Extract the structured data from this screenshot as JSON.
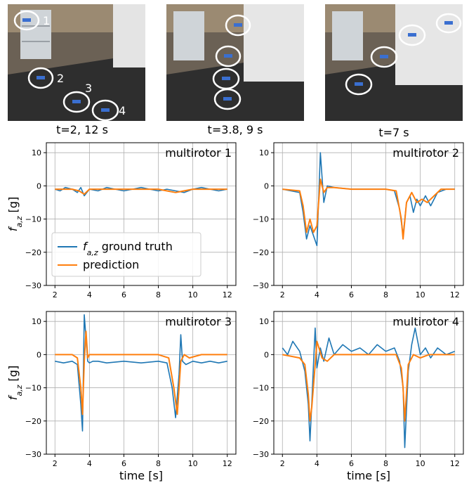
{
  "photos": [
    {
      "caption": "t=2, 12 s",
      "markers": [
        "1",
        "2",
        "3",
        "4"
      ]
    },
    {
      "caption": "t=3.8, 9 s",
      "markers": []
    },
    {
      "caption": "t=7 s",
      "markers": []
    }
  ],
  "colors": {
    "ground_truth": "#1f77b4",
    "prediction": "#ff7f0e",
    "grid": "#b0b0b0",
    "floor": "#3a3a3a",
    "cabinet": "#c9cfd4",
    "curtain": "#e8e8e8",
    "wall": "#8c7a63"
  },
  "chart_data": [
    {
      "type": "line",
      "title": "multirotor 1",
      "xlabel": "",
      "ylabel": "f_{a,z} [g]",
      "xlim": [
        1.5,
        12.5
      ],
      "ylim": [
        -30,
        13
      ],
      "xticks": [
        2,
        4,
        6,
        8,
        10,
        12
      ],
      "yticks": [
        10,
        0,
        -10,
        -20,
        -30
      ],
      "grid": true,
      "legend": {
        "position": "lower-left",
        "entries": [
          "f_{a,z} ground truth",
          "prediction"
        ]
      },
      "series": [
        {
          "name": "f_{a,z} ground truth",
          "x": [
            2,
            2.3,
            2.6,
            3,
            3.3,
            3.5,
            3.7,
            4,
            4.5,
            5,
            5.5,
            6,
            6.5,
            7,
            7.5,
            8,
            8.5,
            9,
            9.5,
            10,
            10.5,
            11,
            11.5,
            12
          ],
          "y": [
            -1,
            -1.5,
            -0.5,
            -1,
            -2,
            -0.5,
            -3,
            -1,
            -1.5,
            -0.5,
            -1,
            -1.5,
            -1,
            -0.5,
            -1,
            -1.5,
            -1,
            -1.5,
            -2,
            -1,
            -0.5,
            -1,
            -1.5,
            -1
          ]
        },
        {
          "name": "prediction",
          "x": [
            2,
            3,
            3.4,
            3.7,
            4,
            5,
            6,
            7,
            8,
            8.5,
            9,
            10,
            11,
            12
          ],
          "y": [
            -1,
            -1,
            -1.5,
            -2.5,
            -1,
            -1,
            -1,
            -1,
            -1,
            -1.5,
            -2,
            -1,
            -1,
            -1
          ]
        }
      ]
    },
    {
      "type": "line",
      "title": "multirotor 2",
      "xlabel": "",
      "ylabel": "",
      "xlim": [
        1.5,
        12.5
      ],
      "ylim": [
        -30,
        13
      ],
      "xticks": [
        2,
        4,
        6,
        8,
        10,
        12
      ],
      "yticks": [
        10,
        0,
        -10,
        -20,
        -30
      ],
      "grid": true,
      "series": [
        {
          "name": "f_{a,z} ground truth",
          "x": [
            2,
            2.5,
            3,
            3.2,
            3.4,
            3.6,
            3.8,
            4,
            4.2,
            4.4,
            4.6,
            5,
            6,
            7,
            8,
            8.5,
            8.8,
            9,
            9.2,
            9.4,
            9.6,
            9.8,
            10,
            10.3,
            10.6,
            11,
            11.5,
            12
          ],
          "y": [
            -1,
            -1.5,
            -2,
            -8,
            -16,
            -12,
            -15,
            -18,
            10,
            -5,
            0,
            -0.5,
            -1,
            -1,
            -1,
            -1.5,
            -7,
            -15,
            -5,
            -3,
            -8,
            -4,
            -6,
            -3,
            -6,
            -2,
            -1,
            -1
          ]
        },
        {
          "name": "prediction",
          "x": [
            2,
            3,
            3.2,
            3.4,
            3.6,
            3.8,
            4,
            4.2,
            4.4,
            4.6,
            5,
            6,
            7,
            8,
            8.6,
            8.9,
            9,
            9.2,
            9.5,
            9.8,
            10.1,
            10.4,
            10.8,
            11.2,
            12
          ],
          "y": [
            -1,
            -1.5,
            -6,
            -14,
            -10,
            -14,
            -12,
            2,
            -2,
            -0.5,
            -0.5,
            -1,
            -1,
            -1,
            -1.5,
            -10,
            -16,
            -5,
            -2,
            -5,
            -4,
            -5,
            -3,
            -1,
            -1
          ]
        }
      ]
    },
    {
      "type": "line",
      "title": "multirotor 3",
      "xlabel": "time [s]",
      "ylabel": "f_{a,z} [g]",
      "xlim": [
        1.5,
        12.5
      ],
      "ylim": [
        -30,
        13
      ],
      "xticks": [
        2,
        4,
        6,
        8,
        10,
        12
      ],
      "yticks": [
        10,
        0,
        -10,
        -20,
        -30
      ],
      "grid": true,
      "series": [
        {
          "name": "f_{a,z} ground truth",
          "x": [
            2,
            2.5,
            3,
            3.3,
            3.5,
            3.6,
            3.7,
            3.8,
            3.9,
            4,
            4.2,
            4.5,
            5,
            6,
            7,
            8,
            8.5,
            8.8,
            9,
            9.2,
            9.3,
            9.4,
            9.6,
            10,
            10.5,
            11,
            11.5,
            12
          ],
          "y": [
            -2,
            -2.5,
            -2,
            -3,
            -15,
            -23,
            12,
            5,
            -2,
            -2.5,
            -2,
            -2,
            -2.5,
            -2,
            -2.5,
            -2,
            -2.5,
            -10,
            -19,
            -6,
            6,
            -2,
            -3,
            -2,
            -2.5,
            -2,
            -2.5,
            -2
          ]
        },
        {
          "name": "prediction",
          "x": [
            2,
            3,
            3.3,
            3.5,
            3.6,
            3.7,
            3.8,
            3.9,
            4,
            4.3,
            5,
            6,
            7,
            8,
            8.6,
            8.9,
            9.1,
            9.3,
            9.5,
            9.8,
            10.5,
            11,
            12
          ],
          "y": [
            0,
            0,
            -1,
            -10,
            -18,
            -2,
            7,
            -1,
            0,
            0,
            0,
            0,
            0,
            0,
            -1,
            -10,
            -18,
            -2,
            0,
            -1,
            0,
            0,
            0
          ]
        }
      ]
    },
    {
      "type": "line",
      "title": "multirotor 4",
      "xlabel": "time [s]",
      "ylabel": "",
      "xlim": [
        1.5,
        12.5
      ],
      "ylim": [
        -30,
        13
      ],
      "xticks": [
        2,
        4,
        6,
        8,
        10,
        12
      ],
      "yticks": [
        10,
        0,
        -10,
        -20,
        -30
      ],
      "grid": true,
      "series": [
        {
          "name": "f_{a,z} ground truth",
          "x": [
            2,
            2.3,
            2.6,
            3,
            3.3,
            3.5,
            3.6,
            3.7,
            3.8,
            3.9,
            4,
            4.2,
            4.4,
            4.7,
            5,
            5.5,
            6,
            6.5,
            7,
            7.5,
            8,
            8.5,
            8.8,
            9,
            9.1,
            9.3,
            9.5,
            9.7,
            10,
            10.3,
            10.6,
            11,
            11.5,
            12
          ],
          "y": [
            2,
            0,
            4,
            1,
            -5,
            -15,
            -26,
            -15,
            -3,
            8,
            -4,
            2,
            -2,
            5,
            0,
            3,
            1,
            2,
            0,
            3,
            1,
            2,
            -2,
            -10,
            -28,
            -5,
            3,
            8,
            0,
            2,
            -1,
            2,
            0,
            1
          ]
        },
        {
          "name": "prediction",
          "x": [
            2,
            3,
            3.3,
            3.5,
            3.6,
            3.7,
            3.9,
            4,
            4.3,
            4.6,
            5,
            6,
            7,
            8,
            8.6,
            8.9,
            9,
            9.1,
            9.3,
            9.6,
            10,
            10.5,
            11,
            12
          ],
          "y": [
            0,
            -1,
            -3,
            -12,
            -20,
            -16,
            -3,
            4,
            -1,
            -2,
            0,
            0,
            0,
            0,
            0,
            -4,
            -10,
            -20,
            -3,
            0,
            -1,
            0,
            0,
            0
          ]
        }
      ]
    }
  ]
}
